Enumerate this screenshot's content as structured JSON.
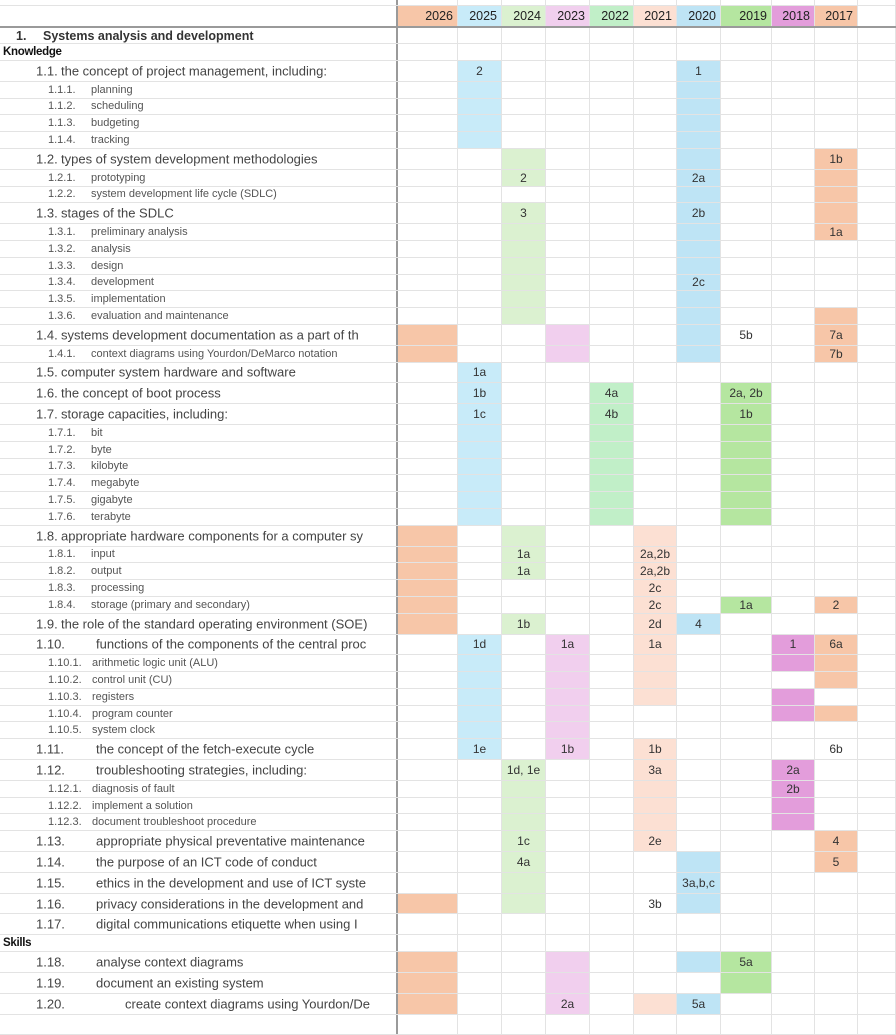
{
  "years": [
    {
      "label": "2026",
      "color": "#f7c6a8"
    },
    {
      "label": "2025",
      "color": "#c8ebf9"
    },
    {
      "label": "2024",
      "color": "#dbf1d0"
    },
    {
      "label": "2023",
      "color": "#f1cfee"
    },
    {
      "label": "2022",
      "color": "#c1efc8"
    },
    {
      "label": "2021",
      "color": "#fce0d3"
    },
    {
      "label": "2020",
      "color": "#bee4f5"
    },
    {
      "label": "2019",
      "color": "#b5e6a0"
    },
    {
      "label": "2018",
      "color": "#e39ddb"
    },
    {
      "label": "2017",
      "color": "#f7c6a8"
    }
  ],
  "rows": [
    {
      "t": "section",
      "n": "1.",
      "x": "Systems analysis and development",
      "hl": [],
      "c": {}
    },
    {
      "t": "group",
      "n": "",
      "x": "Knowledge",
      "hl": [],
      "c": {}
    },
    {
      "t": "main",
      "n": "1.1.",
      "x": "the concept of project management, including:",
      "hl": [
        1,
        6
      ],
      "c": {
        "1": "2",
        "6": "1"
      }
    },
    {
      "t": "sub",
      "n": "1.1.1.",
      "x": "planning",
      "hl": [
        1,
        6
      ],
      "c": {}
    },
    {
      "t": "sub",
      "n": "1.1.2.",
      "x": "scheduling",
      "hl": [
        1,
        6
      ],
      "c": {}
    },
    {
      "t": "sub",
      "n": "1.1.3.",
      "x": "budgeting",
      "hl": [
        1,
        6
      ],
      "c": {}
    },
    {
      "t": "sub",
      "n": "1.1.4.",
      "x": "tracking",
      "hl": [
        1,
        6
      ],
      "c": {}
    },
    {
      "t": "main",
      "n": "1.2.",
      "x": "types of system development methodologies",
      "hl": [
        2,
        6,
        9
      ],
      "c": {
        "9": "1b"
      }
    },
    {
      "t": "sub",
      "n": "1.2.1.",
      "x": "prototyping",
      "hl": [
        2,
        6,
        9
      ],
      "c": {
        "2": "2",
        "6": "2a"
      }
    },
    {
      "t": "sub",
      "n": "1.2.2.",
      "x": "system development life cycle (SDLC)",
      "hl": [
        6,
        9
      ],
      "c": {}
    },
    {
      "t": "main",
      "n": "1.3.",
      "x": "stages of the SDLC",
      "hl": [
        2,
        6,
        9
      ],
      "c": {
        "2": "3",
        "6": "2b"
      }
    },
    {
      "t": "sub",
      "n": "1.3.1.",
      "x": "preliminary analysis",
      "hl": [
        2,
        6,
        9
      ],
      "c": {
        "9": "1a"
      }
    },
    {
      "t": "sub",
      "n": "1.3.2.",
      "x": "analysis",
      "hl": [
        2,
        6
      ],
      "c": {}
    },
    {
      "t": "sub",
      "n": "1.3.3.",
      "x": "design",
      "hl": [
        2,
        6
      ],
      "c": {}
    },
    {
      "t": "sub",
      "n": "1.3.4.",
      "x": "development",
      "hl": [
        2,
        6
      ],
      "c": {
        "6": "2c"
      }
    },
    {
      "t": "sub",
      "n": "1.3.5.",
      "x": "implementation",
      "hl": [
        2,
        6
      ],
      "c": {}
    },
    {
      "t": "sub",
      "n": "1.3.6.",
      "x": "evaluation and maintenance",
      "hl": [
        2,
        6,
        9
      ],
      "c": {}
    },
    {
      "t": "main",
      "n": "1.4.",
      "x": "systems development documentation as a part of th",
      "hl": [
        0,
        3,
        6,
        9
      ],
      "c": {
        "7": "5b",
        "9": "7a"
      }
    },
    {
      "t": "sub",
      "n": "1.4.1.",
      "x": "context diagrams using Yourdon/DeMarco notation",
      "hl": [
        0,
        3,
        6,
        9
      ],
      "c": {
        "9": "7b"
      }
    },
    {
      "t": "main",
      "n": "1.5.",
      "x": "computer system hardware and software",
      "hl": [
        1
      ],
      "c": {
        "1": "1a"
      }
    },
    {
      "t": "main",
      "n": "1.6.",
      "x": "the concept of boot process",
      "hl": [
        1,
        4,
        7
      ],
      "c": {
        "1": "1b",
        "4": "4a",
        "7": "2a, 2b"
      }
    },
    {
      "t": "main",
      "n": "1.7.",
      "x": "storage capacities, including:",
      "hl": [
        1,
        4,
        7
      ],
      "c": {
        "1": "1c",
        "4": "4b",
        "7": "1b"
      }
    },
    {
      "t": "sub",
      "n": "1.7.1.",
      "x": "bit",
      "hl": [
        1,
        4,
        7
      ],
      "c": {}
    },
    {
      "t": "sub",
      "n": "1.7.2.",
      "x": "byte",
      "hl": [
        1,
        4,
        7
      ],
      "c": {}
    },
    {
      "t": "sub",
      "n": "1.7.3.",
      "x": "kilobyte",
      "hl": [
        1,
        4,
        7
      ],
      "c": {}
    },
    {
      "t": "sub",
      "n": "1.7.4.",
      "x": "megabyte",
      "hl": [
        1,
        4,
        7
      ],
      "c": {}
    },
    {
      "t": "sub",
      "n": "1.7.5.",
      "x": "gigabyte",
      "hl": [
        1,
        4,
        7
      ],
      "c": {}
    },
    {
      "t": "sub",
      "n": "1.7.6.",
      "x": "terabyte",
      "hl": [
        1,
        4,
        7
      ],
      "c": {}
    },
    {
      "t": "main",
      "n": "1.8.",
      "x": "appropriate hardware components for a computer sy",
      "hl": [
        0,
        2,
        5
      ],
      "c": {}
    },
    {
      "t": "sub",
      "n": "1.8.1.",
      "x": "input",
      "hl": [
        0,
        2,
        5
      ],
      "c": {
        "2": "1a",
        "5": "2a,2b"
      }
    },
    {
      "t": "sub",
      "n": "1.8.2.",
      "x": "output",
      "hl": [
        0,
        2,
        5
      ],
      "c": {
        "2": "1a",
        "5": "2a,2b"
      }
    },
    {
      "t": "sub",
      "n": "1.8.3.",
      "x": "processing",
      "hl": [
        0,
        5
      ],
      "c": {
        "5": "2c"
      }
    },
    {
      "t": "sub",
      "n": "1.8.4.",
      "x": "storage (primary and secondary)",
      "hl": [
        0,
        5,
        7,
        9
      ],
      "c": {
        "5": "2c",
        "7": "1a",
        "9": "2"
      }
    },
    {
      "t": "main",
      "n": "1.9.",
      "x": "the role of the standard operating environment (SOE)",
      "hl": [
        0,
        2,
        5,
        6
      ],
      "c": {
        "2": "1b",
        "5": "2d",
        "6": "4"
      }
    },
    {
      "t": "main",
      "n": "1.10.",
      "x": "functions of the components of the central proc",
      "wide": 1,
      "hl": [
        1,
        3,
        5,
        8,
        9
      ],
      "c": {
        "1": "1d",
        "3": "1a",
        "5": "1a",
        "8": "1",
        "9": "6a"
      }
    },
    {
      "t": "sub",
      "n": "1.10.1.",
      "x": "arithmetic logic unit (ALU)",
      "hl": [
        1,
        3,
        5,
        8,
        9
      ],
      "c": {}
    },
    {
      "t": "sub",
      "n": "1.10.2.",
      "x": "control unit (CU)",
      "hl": [
        1,
        3,
        5,
        9
      ],
      "c": {}
    },
    {
      "t": "sub",
      "n": "1.10.3.",
      "x": "registers",
      "hl": [
        1,
        3,
        5,
        8
      ],
      "c": {}
    },
    {
      "t": "sub",
      "n": "1.10.4.",
      "x": "program counter",
      "hl": [
        1,
        3,
        8,
        9
      ],
      "c": {}
    },
    {
      "t": "sub",
      "n": "1.10.5.",
      "x": "system clock",
      "hl": [
        1,
        3
      ],
      "c": {}
    },
    {
      "t": "main",
      "n": "1.11.",
      "x": "the concept of the fetch-execute cycle",
      "wide": 1,
      "hl": [
        1,
        3,
        5
      ],
      "c": {
        "1": "1e",
        "3": "1b",
        "5": "1b",
        "9": "6b"
      }
    },
    {
      "t": "main",
      "n": "1.12.",
      "x": "troubleshooting strategies, including:",
      "wide": 1,
      "hl": [
        2,
        5,
        8
      ],
      "c": {
        "2": "1d, 1e",
        "5": "3a",
        "8": "2a"
      }
    },
    {
      "t": "sub",
      "n": "1.12.1.",
      "x": "diagnosis of fault",
      "hl": [
        2,
        5,
        8
      ],
      "c": {
        "8": "2b"
      }
    },
    {
      "t": "sub",
      "n": "1.12.2.",
      "x": "implement a solution",
      "hl": [
        2,
        5,
        8
      ],
      "c": {}
    },
    {
      "t": "sub",
      "n": "1.12.3.",
      "x": "document troubleshoot procedure",
      "hl": [
        2,
        5,
        8
      ],
      "c": {}
    },
    {
      "t": "main",
      "n": "1.13.",
      "x": "appropriate physical preventative maintenance",
      "wide": 1,
      "hl": [
        2,
        5,
        9
      ],
      "c": {
        "2": "1c",
        "5": "2e",
        "9": "4"
      }
    },
    {
      "t": "main",
      "n": "1.14.",
      "x": "the purpose of an ICT code of conduct",
      "wide": 1,
      "hl": [
        2,
        6,
        9
      ],
      "c": {
        "2": "4a",
        "9": "5"
      }
    },
    {
      "t": "main",
      "n": "1.15.",
      "x": "ethics in the development and use of ICT syste",
      "wide": 1,
      "hl": [
        2,
        6
      ],
      "c": {
        "6": "3a,b,c"
      }
    },
    {
      "t": "main",
      "n": "1.16.",
      "x": "privacy considerations in the development and",
      "wide": 1,
      "hl": [
        0,
        2,
        6
      ],
      "c": {
        "5": "3b"
      }
    },
    {
      "t": "main",
      "n": "1.17.",
      "x": "digital communications etiquette when using I",
      "wide": 1,
      "hl": [],
      "c": {}
    },
    {
      "t": "group",
      "n": "",
      "x": "Skills",
      "hl": [],
      "c": {}
    },
    {
      "t": "main",
      "n": "1.18.",
      "x": "analyse context diagrams",
      "wide": 1,
      "hl": [
        0,
        3,
        6,
        7
      ],
      "c": {
        "7": "5a"
      }
    },
    {
      "t": "main",
      "n": "1.19.",
      "x": "document an existing system",
      "wide": 1,
      "hl": [
        0,
        3,
        7
      ],
      "c": {}
    },
    {
      "t": "main",
      "n": "1.20.",
      "x": "create context diagrams using Yourdon/De",
      "wide": 2,
      "hl": [
        0,
        3,
        5,
        6
      ],
      "c": {
        "3": "2a",
        "6": "5a"
      }
    }
  ]
}
